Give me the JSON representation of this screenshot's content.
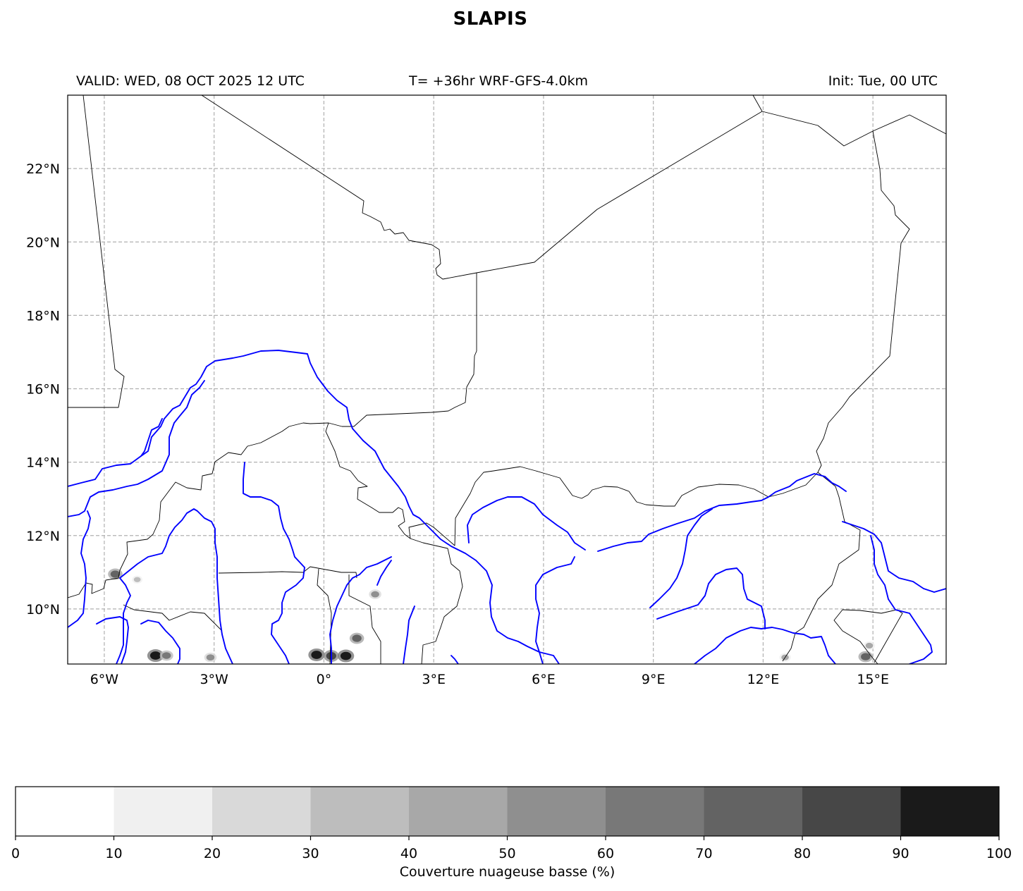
{
  "title": "SLAPIS",
  "header": {
    "valid": "VALID: WED, 08 OCT 2025 12 UTC",
    "lead": "T= +36hr WRF-GFS-4.0km",
    "init": "Init: Tue, 00 UTC"
  },
  "map": {
    "extent": {
      "lon": [
        -7.0,
        17.0
      ],
      "lat": [
        8.5,
        24.0
      ]
    },
    "lon_ticks": [
      {
        "value": -6,
        "label": "6°W"
      },
      {
        "value": -3,
        "label": "3°W"
      },
      {
        "value": 0,
        "label": "0°"
      },
      {
        "value": 3,
        "label": "3°E"
      },
      {
        "value": 6,
        "label": "6°E"
      },
      {
        "value": 9,
        "label": "9°E"
      },
      {
        "value": 12,
        "label": "12°E"
      },
      {
        "value": 15,
        "label": "15°E"
      }
    ],
    "lat_ticks": [
      {
        "value": 10,
        "label": "10°N"
      },
      {
        "value": 12,
        "label": "12°N"
      },
      {
        "value": 14,
        "label": "14°N"
      },
      {
        "value": 16,
        "label": "16°N"
      },
      {
        "value": 18,
        "label": "18°N"
      },
      {
        "value": 20,
        "label": "20°N"
      },
      {
        "value": 22,
        "label": "22°N"
      }
    ],
    "grid": true,
    "colors": {
      "border": "#000000",
      "river": "#0000ff",
      "grid": "#b0b0b0"
    },
    "cloud_patches": [
      {
        "lon": -4.6,
        "lat": 8.73,
        "value": 90
      },
      {
        "lon": -4.3,
        "lat": 8.73,
        "value": 60
      },
      {
        "lon": -3.1,
        "lat": 8.68,
        "value": 50
      },
      {
        "lon": -5.7,
        "lat": 10.95,
        "value": 70
      },
      {
        "lon": -5.1,
        "lat": 10.8,
        "value": 30
      },
      {
        "lon": -0.2,
        "lat": 8.75,
        "value": 90
      },
      {
        "lon": 0.2,
        "lat": 8.72,
        "value": 80
      },
      {
        "lon": 0.6,
        "lat": 8.72,
        "value": 90
      },
      {
        "lon": 0.9,
        "lat": 9.2,
        "value": 70
      },
      {
        "lon": 1.4,
        "lat": 10.4,
        "value": 50
      },
      {
        "lon": 12.6,
        "lat": 8.68,
        "value": 40
      },
      {
        "lon": 14.8,
        "lat": 8.7,
        "value": 70
      },
      {
        "lon": 14.9,
        "lat": 9.0,
        "value": 40
      }
    ]
  },
  "colorbar": {
    "ticks": [
      0,
      10,
      20,
      30,
      40,
      50,
      60,
      70,
      80,
      90,
      100
    ],
    "colors": [
      "#ffffff",
      "#f0f0f0",
      "#d9d9d9",
      "#bdbdbd",
      "#a8a8a8",
      "#8f8f8f",
      "#787878",
      "#636363",
      "#474747",
      "#1a1a1a"
    ],
    "label": "Couverture nuageuse basse (%)"
  }
}
